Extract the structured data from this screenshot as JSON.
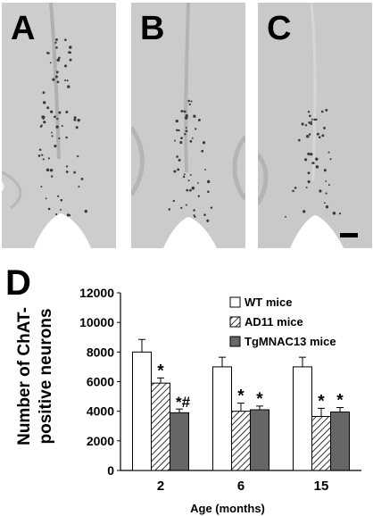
{
  "panels": [
    {
      "label": "A"
    },
    {
      "label": "B"
    },
    {
      "label": "C"
    }
  ],
  "chart_panel_label": "D",
  "chart_data": {
    "type": "bar",
    "categories": [
      "2",
      "6",
      "15"
    ],
    "series": [
      {
        "name": "WT mice",
        "values": [
          8000,
          7000,
          7000
        ],
        "errors": [
          850,
          650,
          650
        ],
        "fill": "white",
        "annotations": [
          "",
          "",
          ""
        ]
      },
      {
        "name": "AD11 mice",
        "values": [
          5900,
          4000,
          3650
        ],
        "errors": [
          350,
          550,
          550
        ],
        "fill": "hatched",
        "annotations": [
          "*",
          "*",
          "*"
        ]
      },
      {
        "name": "TgMNAC13 mice",
        "values": [
          3900,
          4100,
          3950
        ],
        "errors": [
          250,
          250,
          300
        ],
        "fill": "#666666",
        "annotations": [
          "*#",
          "*",
          "*"
        ]
      }
    ],
    "xlabel": "Age (months)",
    "ylabel_lines": [
      "Number of ChAT-",
      "positive neurons"
    ],
    "ylim": [
      0,
      12000
    ],
    "yticks": [
      "0",
      "2000",
      "4000",
      "6000",
      "8000",
      "10000",
      "12000"
    ],
    "legend_position": "top-right",
    "grid": false
  }
}
